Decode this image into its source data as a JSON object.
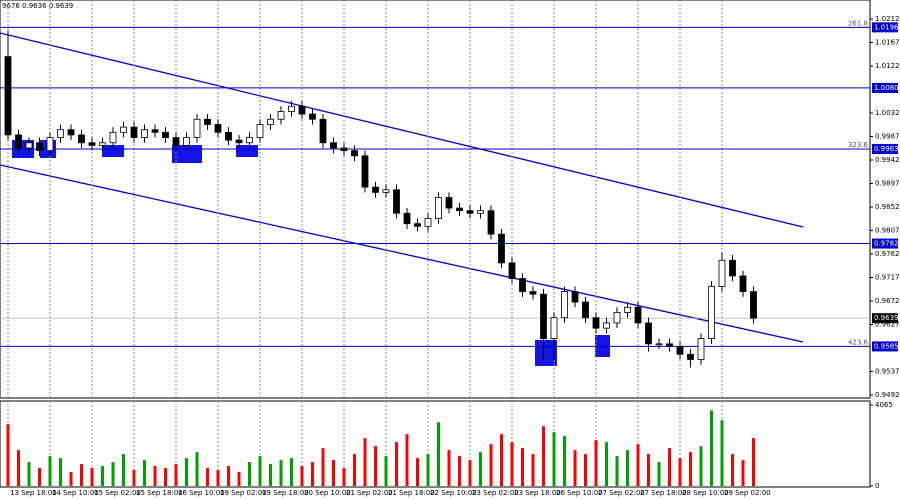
{
  "chart_data": {
    "type": "candlestick",
    "header": "9676 0.9636 0.9639",
    "open": [
      1.014,
      0.999,
      0.9965,
      0.9975,
      0.996,
      0.9985,
      1.0,
      0.999,
      0.9975,
      0.997,
      0.9975,
      0.9995,
      1.0005,
      0.9985,
      1.0,
      0.9995,
      0.9985,
      0.997,
      0.9985,
      1.002,
      1.001,
      0.9995,
      0.998,
      0.9975,
      0.9985,
      1.001,
      1.002,
      1.0035,
      1.0045,
      1.003,
      1.002,
      0.9975,
      0.9965,
      0.996,
      0.995,
      0.989,
      0.988,
      0.9885,
      0.984,
      0.982,
      0.9815,
      0.983,
      0.987,
      0.985,
      0.9845,
      0.984,
      0.9845,
      0.98,
      0.9745,
      0.9715,
      0.969,
      0.9685,
      0.96,
      0.964,
      0.969,
      0.967,
      0.964,
      0.962,
      0.963,
      0.965,
      0.966,
      0.963,
      0.959,
      0.959,
      0.9585,
      0.957,
      0.956,
      0.96,
      0.97,
      0.975,
      0.972,
      0.969
    ],
    "high": [
      1.019,
      1.0,
      0.9985,
      0.9985,
      0.9995,
      1.001,
      1.001,
      1.0,
      0.9985,
      0.9985,
      1.0005,
      1.0015,
      1.0015,
      1.001,
      1.001,
      1.0005,
      0.9995,
      0.9995,
      1.003,
      1.003,
      1.002,
      1.0005,
      0.999,
      0.9995,
      1.002,
      1.003,
      1.0045,
      1.0055,
      1.0055,
      1.004,
      1.003,
      0.9985,
      0.9975,
      0.997,
      0.996,
      0.99,
      0.9895,
      0.9895,
      0.985,
      0.983,
      0.984,
      0.988,
      0.988,
      0.986,
      0.9855,
      0.9855,
      0.9855,
      0.981,
      0.9755,
      0.9725,
      0.97,
      0.9695,
      0.965,
      0.97,
      0.97,
      0.968,
      0.965,
      0.964,
      0.966,
      0.967,
      0.967,
      0.964,
      0.96,
      0.96,
      0.9595,
      0.958,
      0.961,
      0.971,
      0.9765,
      0.976,
      0.973,
      0.97
    ],
    "low": [
      0.998,
      0.9955,
      0.9955,
      0.995,
      0.995,
      0.9975,
      0.998,
      0.9965,
      0.996,
      0.996,
      0.9965,
      0.9985,
      0.9975,
      0.9975,
      0.9985,
      0.9975,
      0.996,
      0.996,
      0.9975,
      1.0,
      0.9985,
      0.997,
      0.9965,
      0.9965,
      0.9975,
      1.0,
      1.001,
      1.0025,
      1.002,
      1.001,
      0.9965,
      0.9955,
      0.995,
      0.994,
      0.988,
      0.987,
      0.987,
      0.983,
      0.981,
      0.9805,
      0.9805,
      0.982,
      0.984,
      0.9835,
      0.983,
      0.983,
      0.979,
      0.9735,
      0.9705,
      0.968,
      0.9675,
      0.956,
      0.956,
      0.963,
      0.966,
      0.963,
      0.961,
      0.961,
      0.962,
      0.964,
      0.962,
      0.9575,
      0.958,
      0.9575,
      0.956,
      0.9545,
      0.955,
      0.959,
      0.969,
      0.971,
      0.968,
      0.9629
    ],
    "close": [
      0.999,
      0.9965,
      0.9975,
      0.996,
      0.9985,
      1.0,
      0.999,
      0.9975,
      0.997,
      0.9975,
      0.9995,
      1.0005,
      0.9985,
      1.0,
      0.9995,
      0.9985,
      0.997,
      0.9985,
      1.002,
      1.001,
      0.9995,
      0.998,
      0.9975,
      0.9985,
      1.001,
      1.002,
      1.0035,
      1.0045,
      1.003,
      1.002,
      0.9975,
      0.9965,
      0.996,
      0.995,
      0.989,
      0.988,
      0.9885,
      0.984,
      0.982,
      0.9815,
      0.983,
      0.987,
      0.985,
      0.9845,
      0.984,
      0.9845,
      0.98,
      0.9745,
      0.9715,
      0.969,
      0.9685,
      0.96,
      0.964,
      0.969,
      0.967,
      0.964,
      0.962,
      0.963,
      0.965,
      0.966,
      0.963,
      0.959,
      0.959,
      0.9585,
      0.957,
      0.956,
      0.96,
      0.97,
      0.975,
      0.972,
      0.969,
      0.9639
    ],
    "volume": [
      3100,
      1800,
      1200,
      900,
      1500,
      1400,
      700,
      1100,
      900,
      1000,
      1200,
      1600,
      800,
      1300,
      1000,
      900,
      1100,
      1400,
      1700,
      900,
      800,
      1000,
      700,
      1200,
      1500,
      1100,
      1300,
      1400,
      1000,
      1200,
      1900,
      1300,
      900,
      1600,
      2400,
      2000,
      1500,
      2200,
      2600,
      1400,
      1600,
      3200,
      1800,
      1500,
      1300,
      1700,
      2100,
      2600,
      2200,
      1900,
      1600,
      3000,
      2700,
      2500,
      1800,
      1600,
      2300,
      2200,
      1500,
      1800,
      2100,
      1600,
      1200,
      1900,
      1400,
      1700,
      2000,
      3800,
      3300,
      1600,
      1300,
      2400
    ],
    "ylim": [
      0.9492,
      1.0212
    ],
    "yticks": [
      1.0212,
      1.0167,
      1.0122,
      1.0032,
      0.9987,
      0.9942,
      0.9897,
      0.9852,
      0.9807,
      0.9762,
      0.9717,
      0.9672,
      0.9627,
      0.9537,
      0.9492
    ],
    "volume_ylim": [
      0,
      4065
    ],
    "volume_ticks": [
      4065,
      0
    ],
    "xticks": [
      {
        "value": 0,
        "label": "13 Sep 18:00"
      },
      {
        "value": 4,
        "label": "14 Sep 10:00"
      },
      {
        "value": 8,
        "label": "15 Sep 02:00"
      },
      {
        "value": 12,
        "label": "15 Sep 18:00"
      },
      {
        "value": 16,
        "label": "16 Sep 10:00"
      },
      {
        "value": 20,
        "label": "19 Sep 02:00"
      },
      {
        "value": 24,
        "label": "19 Sep 18:00"
      },
      {
        "value": 28,
        "label": "20 Sep 10:00"
      },
      {
        "value": 32,
        "label": "21 Sep 02:00"
      },
      {
        "value": 36,
        "label": "21 Sep 18:00"
      },
      {
        "value": 40,
        "label": "22 Sep 10:00"
      },
      {
        "value": 44,
        "label": "23 Sep 02:00"
      },
      {
        "value": 48,
        "label": "23 Sep 18:00"
      },
      {
        "value": 52,
        "label": "26 Sep 10:00"
      },
      {
        "value": 56,
        "label": "27 Sep 02:00"
      },
      {
        "value": 60,
        "label": "27 Sep 18:00"
      },
      {
        "value": 64,
        "label": "28 Sep 10:00"
      },
      {
        "value": 68,
        "label": "29 Sep 02:00"
      }
    ],
    "levels": [
      {
        "value": 1.0196,
        "label": "1.0196",
        "fib": "261.8"
      },
      {
        "value": 1.008,
        "label": "1.0080"
      },
      {
        "value": 0.9963,
        "label": "0.9963",
        "fib": "323.6"
      },
      {
        "value": 0.9782,
        "label": "0.9782"
      },
      {
        "value": 0.9585,
        "label": "0.9585",
        "fib": "423.6"
      }
    ],
    "current_price": {
      "value": 0.9639,
      "label": "0.9639"
    },
    "level_color": "#0000cd",
    "up_color": "#ffffff",
    "down_color": "#000000",
    "volume_up_color": "#00a000",
    "volume_down_color": "#ff0000"
  }
}
